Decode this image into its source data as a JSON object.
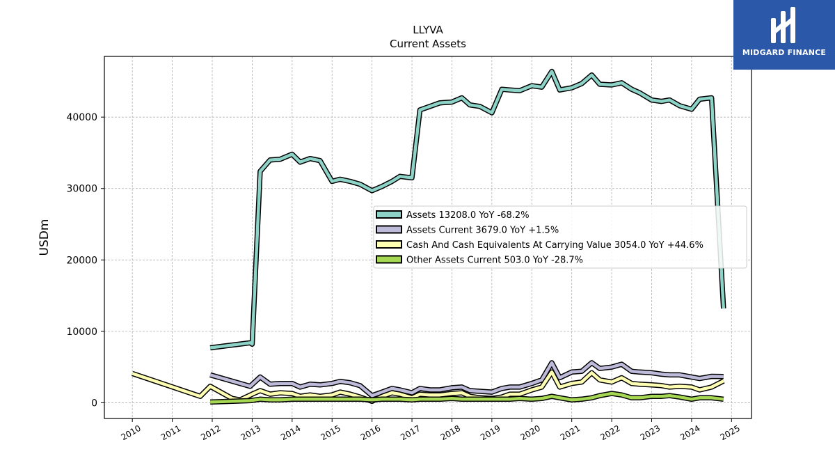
{
  "chart_data": {
    "type": "line",
    "title": "LLYVA",
    "subtitle": "Current  Assets",
    "xlabel": "",
    "ylabel": "USDm",
    "xlim": [
      2009.3,
      2025.5
    ],
    "ylim": [
      -2200,
      48500
    ],
    "grid": true,
    "legend_position": "right-center",
    "x_ticks": [
      "2010",
      "2011",
      "2012",
      "2013",
      "2014",
      "2015",
      "2016",
      "2017",
      "2018",
      "2019",
      "2020",
      "2021",
      "2022",
      "2023",
      "2024",
      "2025"
    ],
    "y_ticks": [
      {
        "value": 0,
        "label": "0"
      },
      {
        "value": 10000,
        "label": "10000"
      },
      {
        "value": 20000,
        "label": "20000"
      },
      {
        "value": 30000,
        "label": "30000"
      },
      {
        "value": 40000,
        "label": "40000"
      }
    ],
    "series": [
      {
        "name": "Assets",
        "legend_label": "Assets  13208.0 YoY -68.2%",
        "color": "#8dd3c7",
        "points": [
          [
            2011.95,
            7700
          ],
          [
            2012.95,
            8400
          ],
          [
            2013.0,
            8200
          ],
          [
            2013.2,
            32400
          ],
          [
            2013.45,
            34000
          ],
          [
            2013.7,
            34100
          ],
          [
            2014.0,
            34800
          ],
          [
            2014.2,
            33700
          ],
          [
            2014.45,
            34200
          ],
          [
            2014.7,
            33900
          ],
          [
            2015.0,
            31000
          ],
          [
            2015.2,
            31300
          ],
          [
            2015.45,
            31000
          ],
          [
            2015.7,
            30600
          ],
          [
            2016.0,
            29700
          ],
          [
            2016.25,
            30300
          ],
          [
            2016.5,
            31000
          ],
          [
            2016.7,
            31700
          ],
          [
            2017.0,
            31500
          ],
          [
            2017.2,
            41000
          ],
          [
            2017.45,
            41500
          ],
          [
            2017.7,
            42000
          ],
          [
            2018.0,
            42100
          ],
          [
            2018.25,
            42700
          ],
          [
            2018.45,
            41700
          ],
          [
            2018.7,
            41500
          ],
          [
            2019.0,
            40600
          ],
          [
            2019.25,
            43900
          ],
          [
            2019.45,
            43800
          ],
          [
            2019.7,
            43700
          ],
          [
            2020.0,
            44400
          ],
          [
            2020.25,
            44200
          ],
          [
            2020.5,
            46400
          ],
          [
            2020.7,
            43800
          ],
          [
            2021.0,
            44100
          ],
          [
            2021.25,
            44700
          ],
          [
            2021.5,
            45900
          ],
          [
            2021.7,
            44600
          ],
          [
            2022.0,
            44500
          ],
          [
            2022.25,
            44800
          ],
          [
            2022.5,
            43900
          ],
          [
            2022.7,
            43400
          ],
          [
            2023.0,
            42400
          ],
          [
            2023.25,
            42200
          ],
          [
            2023.45,
            42400
          ],
          [
            2023.7,
            41600
          ],
          [
            2024.0,
            41100
          ],
          [
            2024.2,
            42500
          ],
          [
            2024.5,
            42700
          ],
          [
            2024.8,
            13208
          ]
        ]
      },
      {
        "name": "Assets Current",
        "legend_label": "Assets Current  3679.0 YoY +1.5%",
        "color": "#bebada",
        "points": [
          [
            2011.95,
            3900
          ],
          [
            2012.95,
            2300
          ],
          [
            2013.2,
            3600
          ],
          [
            2013.45,
            2600
          ],
          [
            2013.7,
            2700
          ],
          [
            2014.0,
            2700
          ],
          [
            2014.2,
            2200
          ],
          [
            2014.45,
            2600
          ],
          [
            2014.7,
            2500
          ],
          [
            2015.0,
            2700
          ],
          [
            2015.2,
            3000
          ],
          [
            2015.45,
            2800
          ],
          [
            2015.7,
            2400
          ],
          [
            2016.0,
            1000
          ],
          [
            2016.25,
            1500
          ],
          [
            2016.5,
            2000
          ],
          [
            2016.7,
            1800
          ],
          [
            2017.0,
            1400
          ],
          [
            2017.2,
            2000
          ],
          [
            2017.45,
            1800
          ],
          [
            2017.7,
            1800
          ],
          [
            2018.0,
            2100
          ],
          [
            2018.25,
            2200
          ],
          [
            2018.45,
            1700
          ],
          [
            2018.7,
            1600
          ],
          [
            2019.0,
            1500
          ],
          [
            2019.25,
            2000
          ],
          [
            2019.45,
            2200
          ],
          [
            2019.7,
            2200
          ],
          [
            2020.0,
            2700
          ],
          [
            2020.25,
            3200
          ],
          [
            2020.5,
            5600
          ],
          [
            2020.7,
            3500
          ],
          [
            2021.0,
            4300
          ],
          [
            2021.25,
            4400
          ],
          [
            2021.5,
            5600
          ],
          [
            2021.7,
            4800
          ],
          [
            2022.0,
            5000
          ],
          [
            2022.25,
            5400
          ],
          [
            2022.5,
            4400
          ],
          [
            2022.7,
            4300
          ],
          [
            2023.0,
            4200
          ],
          [
            2023.25,
            4000
          ],
          [
            2023.45,
            3900
          ],
          [
            2023.7,
            3900
          ],
          [
            2024.0,
            3600
          ],
          [
            2024.2,
            3400
          ],
          [
            2024.5,
            3700
          ],
          [
            2024.8,
            3679
          ]
        ]
      },
      {
        "name": "Cash And Cash Equivalents At Carrying Value",
        "legend_label": "Cash And Cash Equivalents At Carrying Value  3054.0 YoY +44.6%",
        "color": "#ffffb3",
        "points": [
          [
            2010.0,
            4100
          ],
          [
            2011.7,
            900
          ],
          [
            2011.95,
            2300
          ],
          [
            2012.5,
            600
          ],
          [
            2012.7,
            400
          ],
          [
            2013.0,
            1200
          ],
          [
            2013.2,
            1700
          ],
          [
            2013.45,
            1200
          ],
          [
            2013.7,
            1400
          ],
          [
            2014.0,
            1300
          ],
          [
            2014.2,
            900
          ],
          [
            2014.45,
            1100
          ],
          [
            2014.7,
            900
          ],
          [
            2015.0,
            1100
          ],
          [
            2015.2,
            1500
          ],
          [
            2015.45,
            1200
          ],
          [
            2015.7,
            800
          ],
          [
            2016.0,
            200
          ],
          [
            2016.25,
            900
          ],
          [
            2016.5,
            1400
          ],
          [
            2016.7,
            1200
          ],
          [
            2017.0,
            700
          ],
          [
            2017.2,
            1200
          ],
          [
            2017.45,
            1100
          ],
          [
            2017.7,
            1100
          ],
          [
            2018.0,
            1300
          ],
          [
            2018.25,
            1400
          ],
          [
            2018.45,
            900
          ],
          [
            2018.7,
            700
          ],
          [
            2019.0,
            600
          ],
          [
            2019.25,
            800
          ],
          [
            2019.45,
            1200
          ],
          [
            2019.7,
            1200
          ],
          [
            2020.0,
            1800
          ],
          [
            2020.25,
            2200
          ],
          [
            2020.5,
            4300
          ],
          [
            2020.7,
            2200
          ],
          [
            2021.0,
            2700
          ],
          [
            2021.25,
            2900
          ],
          [
            2021.5,
            4200
          ],
          [
            2021.7,
            3200
          ],
          [
            2022.0,
            2900
          ],
          [
            2022.25,
            3500
          ],
          [
            2022.5,
            2700
          ],
          [
            2022.7,
            2600
          ],
          [
            2023.0,
            2500
          ],
          [
            2023.25,
            2400
          ],
          [
            2023.45,
            2200
          ],
          [
            2023.7,
            2300
          ],
          [
            2024.0,
            2200
          ],
          [
            2024.2,
            1800
          ],
          [
            2024.5,
            2200
          ],
          [
            2024.8,
            3054
          ]
        ]
      },
      {
        "name": "Other Assets Current",
        "legend_label": "Other Assets Current  503.0 YoY -28.7%",
        "color": "#a6d854",
        "points": [
          [
            2011.95,
            100
          ],
          [
            2012.95,
            300
          ],
          [
            2013.2,
            500
          ],
          [
            2013.45,
            400
          ],
          [
            2013.7,
            400
          ],
          [
            2014.0,
            500
          ],
          [
            2014.2,
            500
          ],
          [
            2014.45,
            500
          ],
          [
            2014.7,
            500
          ],
          [
            2015.0,
            500
          ],
          [
            2015.2,
            500
          ],
          [
            2015.45,
            500
          ],
          [
            2015.7,
            500
          ],
          [
            2016.0,
            400
          ],
          [
            2016.25,
            500
          ],
          [
            2016.5,
            500
          ],
          [
            2016.7,
            500
          ],
          [
            2017.0,
            400
          ],
          [
            2017.2,
            500
          ],
          [
            2017.45,
            500
          ],
          [
            2017.7,
            500
          ],
          [
            2018.0,
            600
          ],
          [
            2018.25,
            500
          ],
          [
            2018.45,
            500
          ],
          [
            2018.7,
            500
          ],
          [
            2019.0,
            500
          ],
          [
            2019.25,
            500
          ],
          [
            2019.45,
            500
          ],
          [
            2019.7,
            600
          ],
          [
            2020.0,
            500
          ],
          [
            2020.25,
            600
          ],
          [
            2020.5,
            900
          ],
          [
            2020.7,
            700
          ],
          [
            2021.0,
            400
          ],
          [
            2021.25,
            500
          ],
          [
            2021.5,
            700
          ],
          [
            2021.7,
            1000
          ],
          [
            2022.0,
            1300
          ],
          [
            2022.25,
            1100
          ],
          [
            2022.5,
            700
          ],
          [
            2022.7,
            700
          ],
          [
            2023.0,
            900
          ],
          [
            2023.25,
            900
          ],
          [
            2023.45,
            1000
          ],
          [
            2023.7,
            800
          ],
          [
            2024.0,
            500
          ],
          [
            2024.2,
            700
          ],
          [
            2024.5,
            700
          ],
          [
            2024.8,
            503
          ]
        ]
      }
    ]
  },
  "logo": {
    "text": "MIDGARD FINANCE",
    "background": "#2b58a8"
  }
}
